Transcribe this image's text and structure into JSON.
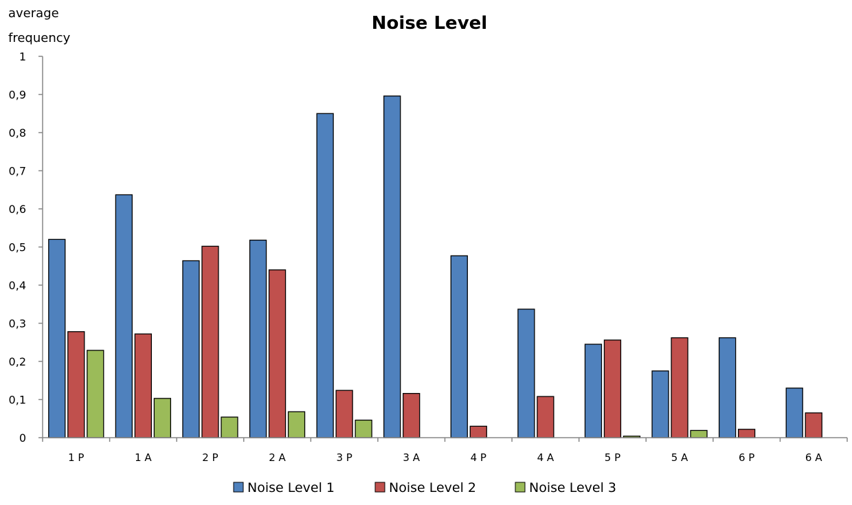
{
  "chart_data": {
    "type": "bar",
    "title": "Noise Level",
    "ylabel_lines": [
      "average",
      "frequency"
    ],
    "xlabel": "",
    "ylim": [
      0,
      1
    ],
    "yticks": [
      "0",
      "0,1",
      "0,2",
      "0,3",
      "0,4",
      "0,5",
      "0,6",
      "0,7",
      "0,8",
      "0,9",
      "1"
    ],
    "categories": [
      "1 P",
      "1 A",
      "2 P",
      "2 A",
      "3 P",
      "3 A",
      "4 P",
      "4 A",
      "5 P",
      "5 A",
      "6 P",
      "6 A"
    ],
    "series": [
      {
        "name": "Noise Level 1",
        "color": "#4F81BD",
        "values": [
          0.52,
          0.637,
          0.464,
          0.518,
          0.85,
          0.896,
          0.477,
          0.337,
          0.245,
          0.175,
          0.262,
          0.13
        ]
      },
      {
        "name": "Noise Level 2",
        "color": "#C0504D",
        "values": [
          0.278,
          0.272,
          0.502,
          0.44,
          0.124,
          0.116,
          0.03,
          0.108,
          0.256,
          0.262,
          0.022,
          0.065
        ]
      },
      {
        "name": "Noise Level 3",
        "color": "#9BBB59",
        "values": [
          0.229,
          0.103,
          0.054,
          0.068,
          0.046,
          0,
          0,
          0,
          0.004,
          0.019,
          0,
          0
        ]
      }
    ],
    "grid": false,
    "legend_position": "bottom"
  }
}
